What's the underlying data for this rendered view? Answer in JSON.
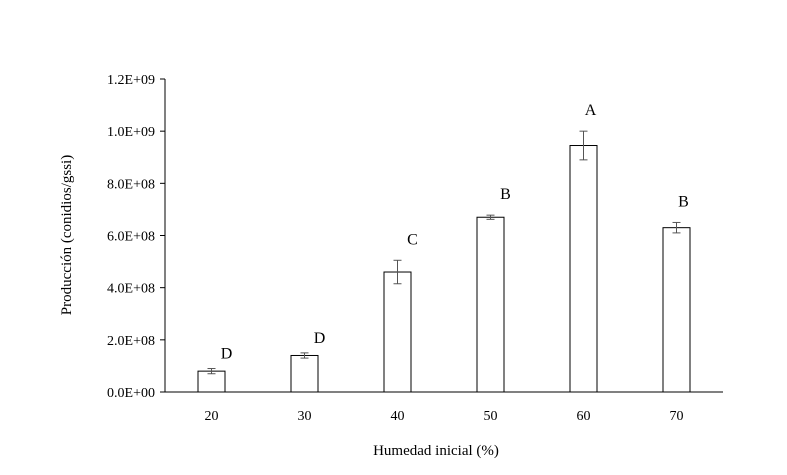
{
  "chart_data": {
    "type": "bar",
    "categories": [
      "20",
      "30",
      "40",
      "50",
      "60",
      "70"
    ],
    "values": [
      80000000,
      140000000,
      460000000,
      670000000,
      945000000,
      630000000
    ],
    "errors": [
      10000000,
      10000000,
      45000000,
      8000000,
      55000000,
      20000000
    ],
    "significance_labels": [
      "D",
      "D",
      "C",
      "B",
      "A",
      "B"
    ],
    "xlabel": "Humedad inicial (%)",
    "ylabel": "Producción (conidios/gssi)",
    "ylim": [
      0,
      1200000000
    ],
    "yticks": [
      0,
      200000000,
      400000000,
      600000000,
      800000000,
      1000000000,
      1200000000
    ],
    "ytick_labels": [
      "0.0E+00",
      "2.0E+08",
      "4.0E+08",
      "6.0E+08",
      "8.0E+08",
      "1.0E+09",
      "1.2E+09"
    ],
    "grid": false,
    "bar_fill": "#ffffff",
    "bar_stroke": "#000000",
    "error_bar_color": "#555555"
  }
}
